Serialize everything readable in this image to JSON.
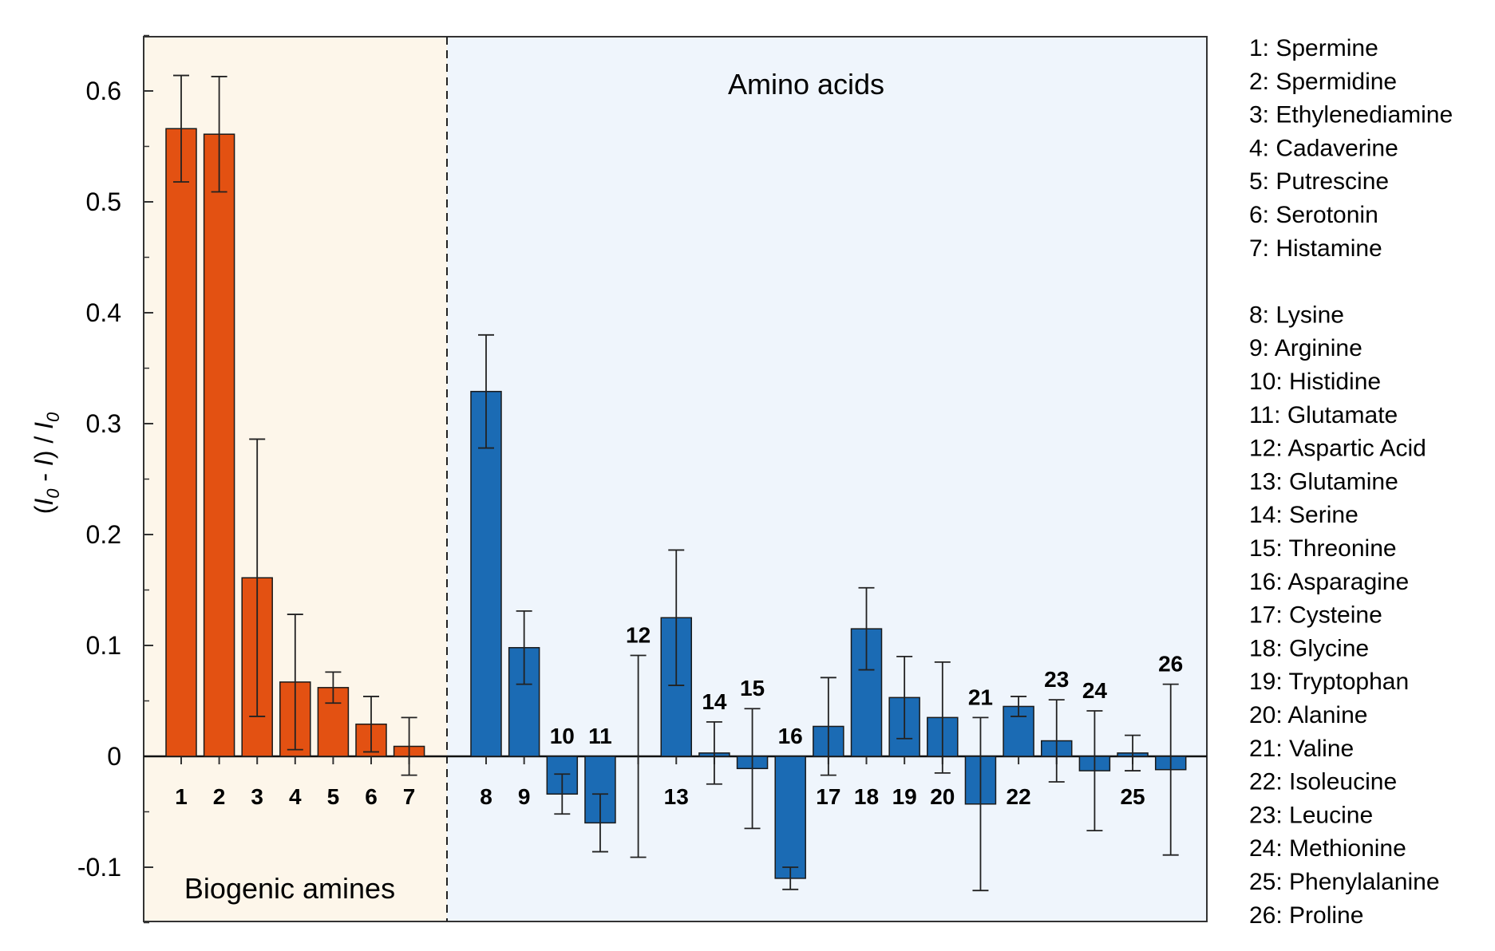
{
  "chart_data": {
    "type": "bar",
    "title": "",
    "xlabel": "",
    "ylabel": "(I0 - I) / I0",
    "ylabel_parts": [
      "(",
      "I",
      "0",
      " - ",
      "I",
      ") / ",
      "I",
      "0"
    ],
    "ylim": [
      -0.15,
      0.65
    ],
    "yticks": [
      {
        "value": 0.6,
        "label": "0.6"
      },
      {
        "value": 0.5,
        "label": "0.5"
      },
      {
        "value": 0.4,
        "label": "0.4"
      },
      {
        "value": 0.3,
        "label": "0.3"
      },
      {
        "value": 0.2,
        "label": "0.2"
      },
      {
        "value": 0.1,
        "label": "0.1"
      },
      {
        "value": 0,
        "label": "0"
      },
      {
        "value": -0.1,
        "label": "-0.1"
      }
    ],
    "regions": [
      {
        "name": "Biogenic amines",
        "label": "Biogenic amines",
        "color": "#fdf6ea"
      },
      {
        "name": "Amino acids",
        "label": "Amino acids",
        "color": "#eff5fc"
      }
    ],
    "series_colors": {
      "Biogenic amines": "#e35112",
      "Amino acids": "#1b6bb4"
    },
    "categories": [
      "1",
      "2",
      "3",
      "4",
      "5",
      "6",
      "7",
      "8",
      "9",
      "10",
      "11",
      "12",
      "13",
      "14",
      "15",
      "16",
      "17",
      "18",
      "19",
      "20",
      "21",
      "22",
      "23",
      "24",
      "25",
      "26"
    ],
    "group": [
      "Biogenic amines",
      "Biogenic amines",
      "Biogenic amines",
      "Biogenic amines",
      "Biogenic amines",
      "Biogenic amines",
      "Biogenic amines",
      "Amino acids",
      "Amino acids",
      "Amino acids",
      "Amino acids",
      "Amino acids",
      "Amino acids",
      "Amino acids",
      "Amino acids",
      "Amino acids",
      "Amino acids",
      "Amino acids",
      "Amino acids",
      "Amino acids",
      "Amino acids",
      "Amino acids",
      "Amino acids",
      "Amino acids",
      "Amino acids",
      "Amino acids"
    ],
    "values": [
      0.566,
      0.561,
      0.161,
      0.067,
      0.062,
      0.029,
      0.009,
      0.329,
      0.098,
      -0.034,
      -0.06,
      0.0,
      0.125,
      0.003,
      -0.011,
      -0.11,
      0.027,
      0.115,
      0.053,
      0.035,
      -0.043,
      0.045,
      0.014,
      -0.013,
      0.003,
      -0.012
    ],
    "error": [
      0.048,
      0.052,
      0.125,
      0.061,
      0.014,
      0.025,
      0.026,
      0.051,
      0.033,
      0.018,
      0.026,
      0.091,
      0.061,
      0.028,
      0.054,
      0.01,
      0.044,
      0.037,
      0.037,
      0.05,
      0.078,
      0.009,
      0.037,
      0.054,
      0.016,
      0.077
    ],
    "label_position": [
      "below",
      "below",
      "below",
      "below",
      "below",
      "below",
      "below",
      "below",
      "below",
      "above",
      "above",
      "above",
      "below",
      "above",
      "above",
      "above",
      "below",
      "below",
      "below",
      "below",
      "above",
      "below",
      "above",
      "above",
      "below",
      "above"
    ],
    "legend": [
      "1: Spermine",
      "2: Spermidine",
      "3: Ethylenediamine",
      "4: Cadaverine",
      "5: Putrescine",
      "6: Serotonin",
      "7: Histamine",
      "8: Lysine",
      "9: Arginine",
      "10: Histidine",
      "11: Glutamate",
      "12: Aspartic Acid",
      "13: Glutamine",
      "14: Serine",
      "15: Threonine",
      "16: Asparagine",
      "17: Cysteine",
      "18: Glycine",
      "19: Tryptophan",
      "20: Alanine",
      "21: Valine",
      "22: Isoleucine",
      "23: Leucine",
      "24: Methionine",
      "25: Phenylalanine",
      "26: Proline"
    ],
    "legend_placement": "right"
  }
}
